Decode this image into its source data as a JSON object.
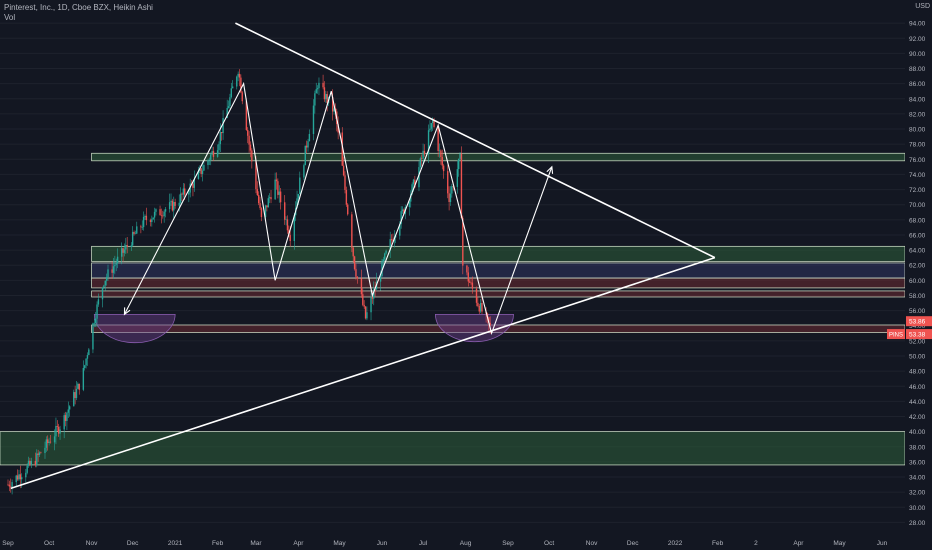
{
  "header": {
    "title": "Pinterest, Inc., 1D, Cboe BZX, Heikin Ashi",
    "volume_label": "Vol",
    "currency": "USD"
  },
  "colors": {
    "bg": "#131722",
    "up": "#26a69a",
    "down": "#ef5350",
    "line": "#ffffff",
    "zone_green": "#2e5e3a",
    "zone_red": "#6b2a32",
    "zone_blue": "#2f3560",
    "cup": "#6a3d8a"
  },
  "chart_data": {
    "type": "candlestick",
    "title": "Pinterest, Inc., 1D, Cboe BZX, Heikin Ashi",
    "ylim": [
      27,
      96
    ],
    "y_ticks": [
      "94.00",
      "92.00",
      "90.00",
      "88.00",
      "86.00",
      "84.00",
      "82.00",
      "80.00",
      "78.00",
      "76.00",
      "74.00",
      "72.00",
      "70.00",
      "68.00",
      "66.00",
      "64.00",
      "62.00",
      "60.00",
      "58.00",
      "56.00",
      "54.00",
      "52.00",
      "50.00",
      "48.00",
      "46.00",
      "44.00",
      "42.00",
      "40.00",
      "38.00",
      "36.00",
      "34.00",
      "32.00",
      "30.00",
      "28.00"
    ],
    "x_ticks": [
      "Sep",
      "Oct",
      "Nov",
      "Dec",
      "2021",
      "Feb",
      "Mar",
      "Apr",
      "May",
      "Jun",
      "Jul",
      "Aug",
      "Sep",
      "Oct",
      "Nov",
      "Dec",
      "2022",
      "Feb",
      "2",
      "Apr",
      "May",
      "Jun"
    ],
    "price_label": "PINS",
    "last_price": "53.38",
    "other_price": "53.86",
    "price_path": [
      {
        "date": "2020-09-01",
        "price": 33
      },
      {
        "date": "2020-09-20",
        "price": 36
      },
      {
        "date": "2020-10-10",
        "price": 41
      },
      {
        "date": "2020-10-25",
        "price": 47
      },
      {
        "date": "2020-11-03",
        "price": 55
      },
      {
        "date": "2020-11-10",
        "price": 60
      },
      {
        "date": "2020-11-25",
        "price": 64
      },
      {
        "date": "2020-12-10",
        "price": 68
      },
      {
        "date": "2020-12-31",
        "price": 70
      },
      {
        "date": "2021-01-15",
        "price": 73
      },
      {
        "date": "2021-02-01",
        "price": 78
      },
      {
        "date": "2021-02-16",
        "price": 88
      },
      {
        "date": "2021-02-24",
        "price": 78
      },
      {
        "date": "2021-03-05",
        "price": 68
      },
      {
        "date": "2021-03-15",
        "price": 73
      },
      {
        "date": "2021-03-26",
        "price": 66
      },
      {
        "date": "2021-04-15",
        "price": 86
      },
      {
        "date": "2021-04-28",
        "price": 82
      },
      {
        "date": "2021-05-12",
        "price": 62
      },
      {
        "date": "2021-05-20",
        "price": 55
      },
      {
        "date": "2021-06-05",
        "price": 64
      },
      {
        "date": "2021-06-25",
        "price": 73
      },
      {
        "date": "2021-07-08",
        "price": 81
      },
      {
        "date": "2021-07-20",
        "price": 71
      },
      {
        "date": "2021-07-28",
        "price": 76
      },
      {
        "date": "2021-07-30",
        "price": 62
      },
      {
        "date": "2021-08-10",
        "price": 57
      },
      {
        "date": "2021-08-20",
        "price": 53.38
      }
    ],
    "trendlines": [
      {
        "from": {
          "date": "2021-02-14",
          "price": 94
        },
        "to": {
          "date": "2022-01-30",
          "price": 63
        }
      },
      {
        "from": {
          "date": "2020-09-03",
          "price": 32.5
        },
        "to": {
          "date": "2022-01-30",
          "price": 63
        }
      }
    ],
    "drawn_path": [
      {
        "date": "2020-11-25",
        "price": 55.5
      },
      {
        "date": "2021-02-20",
        "price": 86
      },
      {
        "date": "2021-03-15",
        "price": 60
      },
      {
        "date": "2021-04-25",
        "price": 85
      },
      {
        "date": "2021-05-25",
        "price": 58
      },
      {
        "date": "2021-07-12",
        "price": 80.5
      },
      {
        "date": "2021-08-20",
        "price": 53
      },
      {
        "date": "2021-10-03",
        "price": 75
      }
    ],
    "zones": [
      {
        "kind": "green",
        "low": 75.8,
        "high": 76.8
      },
      {
        "kind": "green",
        "low": 62.5,
        "high": 64.5
      },
      {
        "kind": "blue",
        "low": 60.3,
        "high": 62.3
      },
      {
        "kind": "red",
        "low": 59.0,
        "high": 60.3
      },
      {
        "kind": "red",
        "low": 57.8,
        "high": 58.6
      },
      {
        "kind": "red",
        "low": 53.1,
        "high": 54.1
      },
      {
        "kind": "green",
        "low": 35.6,
        "high": 40.0
      }
    ],
    "cups": [
      {
        "from": "2020-11-03",
        "to": "2021-01-01",
        "price": 55.5
      },
      {
        "from": "2021-07-10",
        "to": "2021-09-05",
        "price": 55.5
      }
    ]
  }
}
